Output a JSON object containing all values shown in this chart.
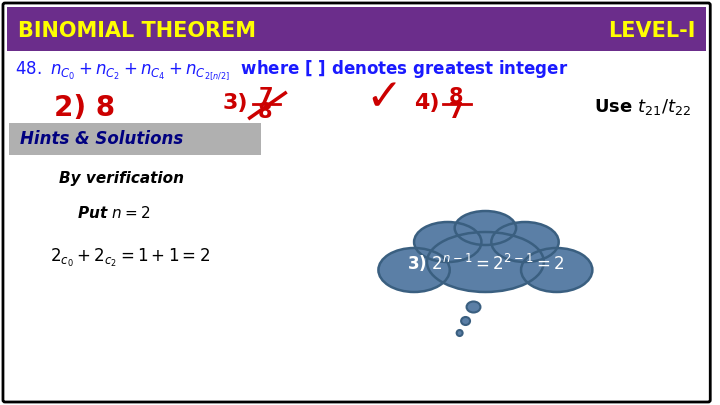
{
  "bg_color": "#ffffff",
  "border_color": "#000000",
  "header_bg": "#6b2d8b",
  "header_text_left": "BINOMIAL THEOREM",
  "header_text_right": "LEVEL-I",
  "header_text_color": "#ffff00",
  "q_color": "#1a1aff",
  "ans_color": "#cc0000",
  "hints_bg": "#b0b0b0",
  "hints_text": "Hints & Solutions",
  "hints_text_color": "#000080",
  "cloud_color": "#5b7fa6",
  "cloud_edge_color": "#3a5f80",
  "tick_color": "#cc0000",
  "black": "#000000",
  "white": "#ffffff"
}
